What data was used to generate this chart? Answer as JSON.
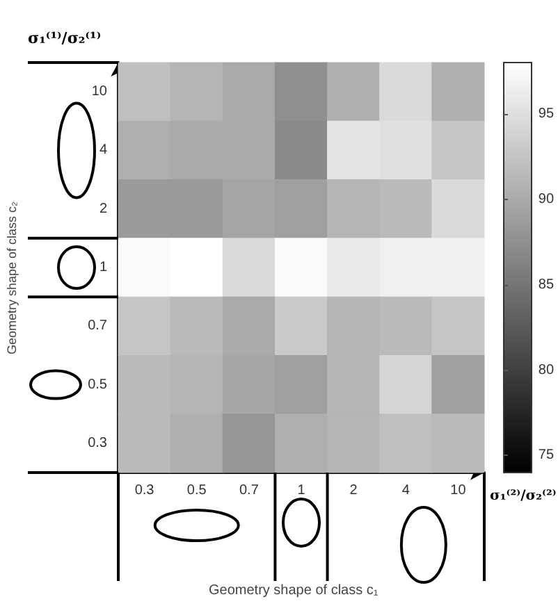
{
  "chart_data": {
    "type": "heatmap",
    "xlabel": "σ₁⁽²⁾/σ₂⁽²⁾",
    "ylabel": "σ₁⁽¹⁾/σ₂⁽¹⁾",
    "annotations": [
      "Geometry shape of class c₁",
      "Geometry shape of class c₂"
    ],
    "categories": [
      "0.3",
      "0.5",
      "0.7",
      "1",
      "2",
      "4",
      "10"
    ],
    "y_categories": [
      "10",
      "4",
      "2",
      "1",
      "0.7",
      "0.5",
      "0.3"
    ],
    "cells": [
      [
        92,
        91,
        90,
        87.5,
        90.5,
        94.5,
        90.5
      ],
      [
        90.5,
        90,
        90,
        87,
        95.5,
        95,
        92.5
      ],
      [
        88.5,
        88.5,
        89.5,
        89,
        91,
        91.5,
        94.5
      ],
      [
        97.5,
        98,
        94.5,
        97.5,
        96,
        96.5,
        96.5
      ],
      [
        92.5,
        91.5,
        90,
        93,
        91,
        91.5,
        92.5
      ],
      [
        91.5,
        91,
        89.5,
        89,
        91,
        94,
        89
      ],
      [
        91.5,
        90.5,
        88,
        90.5,
        91,
        92,
        91.5
      ]
    ],
    "clim": [
      74,
      98
    ],
    "cticks": [
      75,
      80,
      85,
      90,
      95
    ]
  }
}
